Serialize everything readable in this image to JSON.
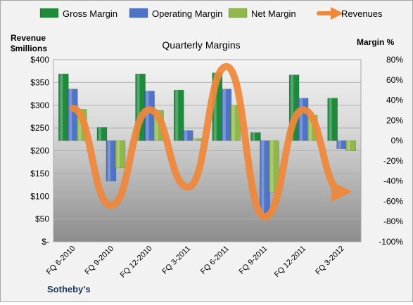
{
  "chart_data": {
    "type": "bar",
    "title": "Quarterly Margins",
    "ylabel_left_line1": "Revenue",
    "ylabel_left_line2": "$millions",
    "ylabel_right": "Margin %",
    "source_label": "Sotheby's",
    "categories": [
      "FQ 6-2010",
      "FQ 9-2010",
      "FQ 12-2010",
      "FQ 3-2011",
      "FQ 6-2011",
      "FQ 9-2011",
      "FQ 12-2011",
      "FQ 3-2012"
    ],
    "left_axis": {
      "min": 0,
      "max": 400,
      "step": 50,
      "tick_labels": [
        "$-",
        "$50",
        "$100",
        "$150",
        "$200",
        "$250",
        "$300",
        "$350",
        "$400"
      ]
    },
    "right_axis": {
      "min": -100,
      "max": 80,
      "step": 20,
      "tick_labels": [
        "-100%",
        "-80%",
        "-60%",
        "-40%",
        "-20%",
        "0%",
        "20%",
        "40%",
        "60%",
        "80%"
      ]
    },
    "bar_series": [
      {
        "name": "Gross Margin",
        "axis": "right",
        "color": "#1e8a3c",
        "values": [
          66,
          13,
          66,
          50,
          67,
          8,
          65,
          42
        ]
      },
      {
        "name": "Operating Margin",
        "axis": "right",
        "color": "#4f73c6",
        "values": [
          51,
          -40,
          49,
          10,
          51,
          -75,
          42,
          -8
        ]
      },
      {
        "name": "Net Margin",
        "axis": "right",
        "color": "#8fb74a",
        "values": [
          31,
          -27,
          30,
          2,
          35,
          -51,
          25,
          -10
        ]
      }
    ],
    "line_series": {
      "name": "Revenues",
      "axis": "left",
      "color": "#f0883a",
      "values": [
        293,
        80,
        290,
        120,
        385,
        55,
        290,
        110
      ]
    },
    "legend_position": "top"
  }
}
